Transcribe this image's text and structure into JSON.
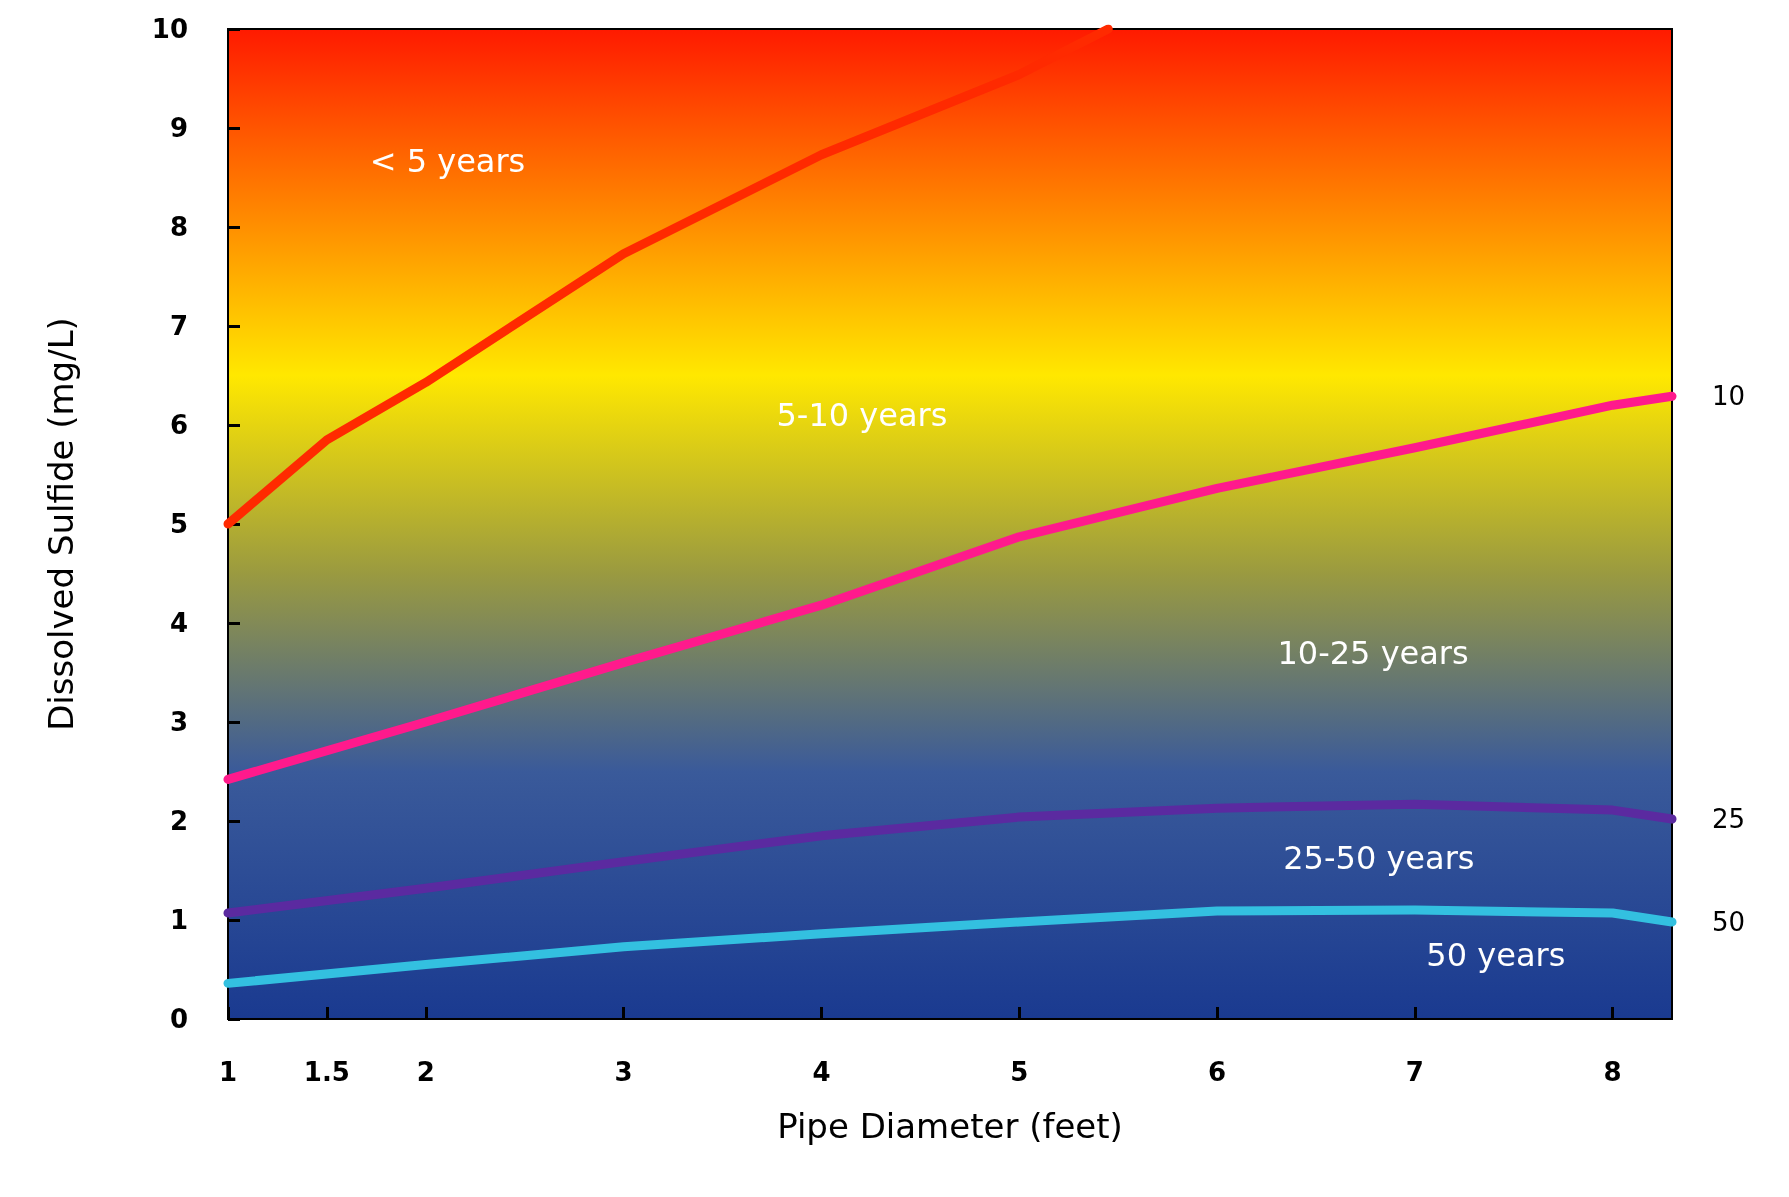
{
  "chart_data": {
    "type": "line",
    "xlabel": "Pipe Diameter (feet)",
    "ylabel": "Dissolved Sulfide (mg/L)",
    "xlim": [
      1,
      8.3
    ],
    "xticks": [
      1,
      1.5,
      2,
      3,
      4,
      5,
      6,
      7,
      8
    ],
    "ylim": [
      0,
      10
    ],
    "yticks": [
      0,
      1,
      2,
      3,
      4,
      5,
      6,
      7,
      8,
      9,
      10
    ],
    "grid": false,
    "legend": false,
    "line_style": "solid",
    "series": [
      {
        "color": "#ff2a00",
        "x": [
          1,
          1.5,
          2,
          3,
          4,
          5,
          5.45
        ],
        "values": [
          5,
          5.85,
          6.43,
          7.73,
          8.73,
          9.54,
          10
        ]
      },
      {
        "name": "10",
        "color": "#ff1a8c",
        "x": [
          1,
          2,
          3,
          4,
          5,
          6,
          7,
          8,
          8.3
        ],
        "values": [
          2.42,
          3.0,
          3.6,
          4.18,
          4.87,
          5.36,
          5.77,
          6.2,
          6.29
        ]
      },
      {
        "name": "25",
        "color": "#5b2aa0",
        "x": [
          1,
          2,
          3,
          4,
          5,
          6,
          7,
          8,
          8.3
        ],
        "values": [
          1.07,
          1.32,
          1.59,
          1.85,
          2.04,
          2.13,
          2.17,
          2.11,
          2.02
        ]
      },
      {
        "name": "50",
        "color": "#33c0e0",
        "x": [
          1,
          2,
          3,
          4,
          5,
          6,
          7,
          8,
          8.3
        ],
        "values": [
          0.36,
          0.55,
          0.73,
          0.86,
          0.98,
          1.09,
          1.1,
          1.07,
          0.98
        ]
      }
    ],
    "annotations": [
      "< 5 years",
      "5-10 years",
      "10-25 years",
      "25-50 years",
      "50 years"
    ]
  }
}
